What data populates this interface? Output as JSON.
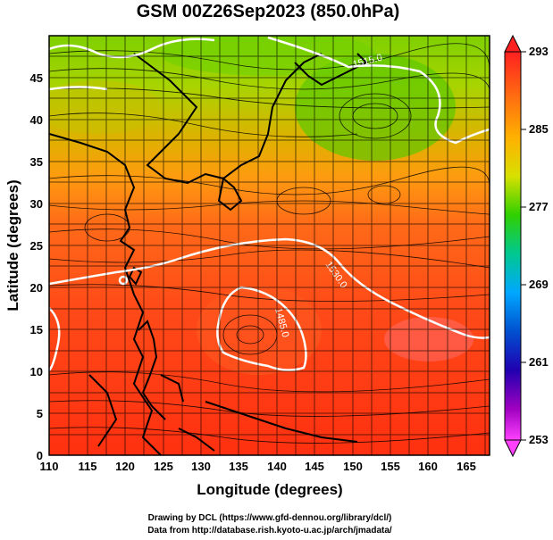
{
  "title": "GSM 00Z26Sep2023 (850.0hPa)",
  "x_axis": {
    "label": "Longitude (degrees)",
    "ticks": [
      "110",
      "115",
      "120",
      "125",
      "130",
      "135",
      "140",
      "145",
      "150",
      "155",
      "160",
      "165"
    ]
  },
  "y_axis": {
    "label": "Latitude  (degrees)",
    "ticks": [
      "0",
      "5",
      "10",
      "15",
      "20",
      "25",
      "30",
      "35",
      "40",
      "45"
    ]
  },
  "colorbar": {
    "labels": [
      "293",
      "285",
      "277",
      "269",
      "261",
      "253"
    ],
    "colors": [
      "#ff2020",
      "#ff6a10",
      "#ffa000",
      "#d8d800",
      "#40d000",
      "#00c8a0",
      "#00a0ff",
      "#0040c0",
      "#3000b0",
      "#c000c0",
      "#ff40ff"
    ]
  },
  "contour_labels": [
    "1515.0",
    "1530.0",
    "1485.0"
  ],
  "footer": {
    "line1": "Drawing by DCL (https://www.gfd-dennou.org/library/dcl/)",
    "line2": "Data from http://database.rish.kyoto-u.ac.jp/arch/jmadata/"
  }
}
